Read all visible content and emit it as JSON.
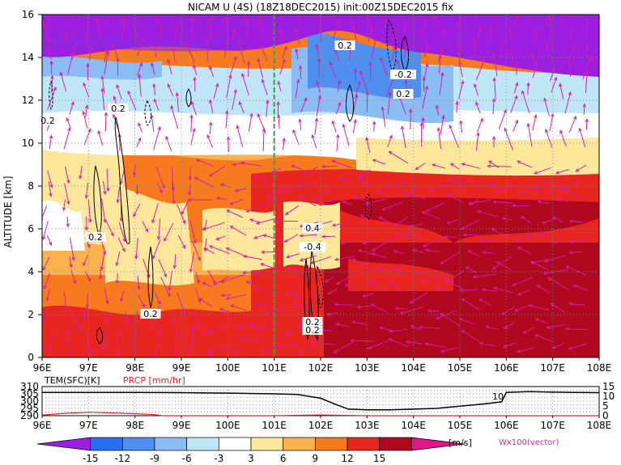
{
  "chart_data": {
    "type": "heatmap",
    "title": "NICAM U (4S) (18Z18DEC2015) init:00Z15DEC2015 fix",
    "ylabel": "ALTITUDE [km]",
    "x_ticks": [
      "96E",
      "97E",
      "98E",
      "99E",
      "100E",
      "101E",
      "102E",
      "103E",
      "104E",
      "105E",
      "106E",
      "107E",
      "108E"
    ],
    "y_ticks": [
      "0",
      "2",
      "4",
      "6",
      "8",
      "10",
      "12",
      "14",
      "16"
    ],
    "xlim": [
      96,
      108
    ],
    "ylim": [
      0,
      16
    ],
    "marker_line_lon": 101,
    "contour_labels": [
      "0.2",
      "0.2",
      "0.2",
      "0.2",
      "0.2",
      "0.4",
      "-0.4",
      "-0.2",
      "0.2",
      "0.2",
      "0.2"
    ],
    "colorbar": {
      "ticks": [
        "-15",
        "-12",
        "-9",
        "-6",
        "-3",
        "3",
        "6",
        "9",
        "12",
        "15"
      ],
      "unit": "[m/s]",
      "colors": [
        "#9c1fe0",
        "#2a6ef0",
        "#4f8ff0",
        "#8cbcf4",
        "#bfe6f7",
        "#ffffff",
        "#fde79b",
        "#f9b24e",
        "#f77a1f",
        "#e8251e",
        "#b0081e",
        "#e0188a"
      ]
    },
    "vector_label": "Wx100(vector)",
    "lower_panel": {
      "tem_label": "TEM(SFC)[K]",
      "prcp_label": "PRCP [mm/hr]",
      "left_ticks": [
        "310",
        "305",
        "300",
        "295",
        "290"
      ],
      "right_ticks": [
        "15",
        "10",
        "5",
        "0"
      ],
      "annotation": "10",
      "tem_series": {
        "x": [
          96,
          97,
          98,
          99,
          100,
          101,
          101.5,
          102,
          102.3,
          102.6,
          103,
          103.5,
          104,
          104.5,
          105,
          105.5,
          105.9,
          106,
          106.5,
          107,
          107.5,
          108
        ],
        "values": [
          306,
          306,
          306,
          305.8,
          305.5,
          305,
          304.6,
          302,
          298,
          294.5,
          294,
          294,
          294.5,
          295,
          296.5,
          298,
          299.5,
          306,
          306.5,
          306.2,
          306,
          305.8
        ]
      },
      "prcp_series": {
        "x": [
          96,
          96.5,
          97,
          97.5,
          98,
          98.4,
          98.6,
          99,
          100,
          101,
          101.5,
          102,
          103,
          104,
          105,
          106,
          107,
          108
        ],
        "values": [
          0.3,
          1.2,
          1.8,
          1.4,
          1.0,
          0.6,
          0,
          0,
          0,
          0,
          0.2,
          0.4,
          0,
          0,
          0,
          0,
          0,
          0
        ]
      },
      "left_range": [
        290,
        310
      ],
      "right_range": [
        0,
        15
      ]
    },
    "legend": "none"
  }
}
